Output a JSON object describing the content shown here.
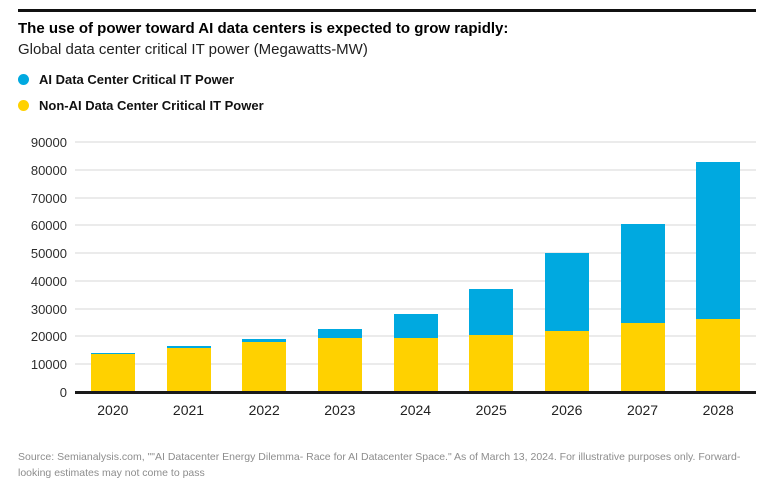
{
  "header": {
    "title": "The use of power toward AI data centers is expected to grow rapidly:",
    "subtitle": "Global data center critical IT power (Megawatts-MW)"
  },
  "chart_data": {
    "type": "bar",
    "stacked": true,
    "title": "The use of power toward AI data centers is expected to grow rapidly:",
    "subtitle": "Global data center critical IT power (Megawatts-MW)",
    "categories": [
      "2020",
      "2021",
      "2022",
      "2023",
      "2024",
      "2025",
      "2026",
      "2027",
      "2028"
    ],
    "series": [
      {
        "name": "AI Data Center Critical IT Power",
        "color": "#00a9e0",
        "values": [
          600,
          800,
          1100,
          3400,
          8500,
          16500,
          28200,
          35500,
          56500
        ]
      },
      {
        "name": "Non-AI Data Center Critical IT Power",
        "color": "#ffd100",
        "values": [
          13900,
          16200,
          18300,
          19800,
          19800,
          21000,
          22300,
          25200,
          26600
        ]
      }
    ],
    "totals": [
      14500,
      17000,
      19400,
      23200,
      28300,
      37500,
      50500,
      60700,
      83100
    ],
    "ylim": [
      0,
      90000
    ],
    "yticks": [
      0,
      10000,
      20000,
      30000,
      40000,
      50000,
      60000,
      70000,
      80000,
      90000
    ],
    "xlabel": "",
    "ylabel": "",
    "grid": true,
    "legend_position": "top-left"
  },
  "footer": {
    "source_text": "Source: Semianalysis.com, \"\"AI Datacenter Energy Dilemma- Race for AI Datacenter Space.\" As of March 13, 2024.  For illustrative purposes only. Forward-looking estimates may not come to pass"
  },
  "colors": {
    "ai_blue": "#00a9e0",
    "non_ai_yellow": "#ffd100",
    "axis": "#1a1a1a",
    "gridline": "#ebebeb",
    "footer_text": "#8d8d8d"
  }
}
